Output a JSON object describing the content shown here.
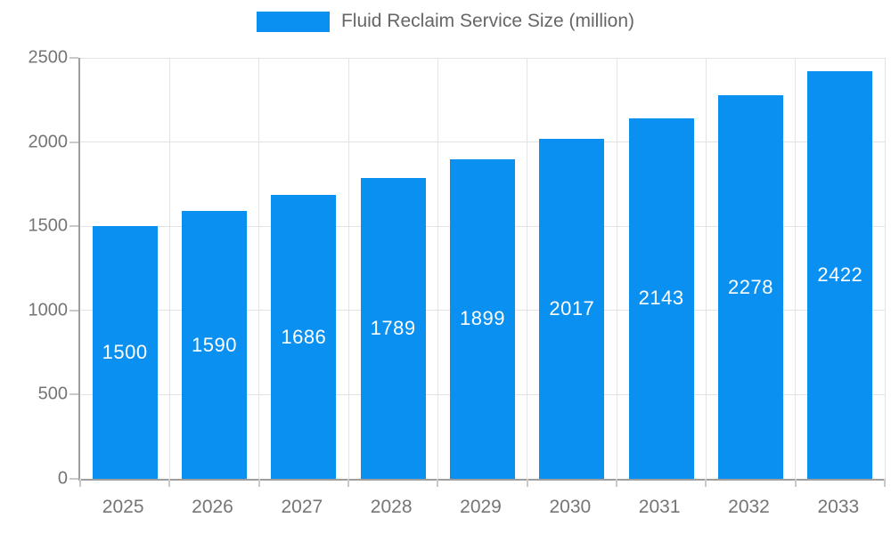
{
  "chart_data": {
    "type": "bar",
    "title": "Fluid Reclaim Service Size (million)",
    "categories": [
      "2025",
      "2026",
      "2027",
      "2028",
      "2029",
      "2030",
      "2031",
      "2032",
      "2033"
    ],
    "values": [
      1500,
      1590,
      1686,
      1789,
      1899,
      2017,
      2143,
      2278,
      2422
    ],
    "xlabel": "",
    "ylabel": "",
    "ylim": [
      0,
      2500
    ],
    "yticks": [
      0,
      500,
      1000,
      1500,
      2000,
      2500
    ],
    "grid": true,
    "legend_position": "top",
    "value_labels": "inside-center-white"
  },
  "colors": {
    "bar": "#0a90f1",
    "grid": "#e3e3e3",
    "axis": "#9e9e9e",
    "tick": "#c9c9c9",
    "axis_text": "#757575",
    "legend_text": "#666666",
    "value_text": "#ffffff",
    "background": "#ffffff"
  }
}
